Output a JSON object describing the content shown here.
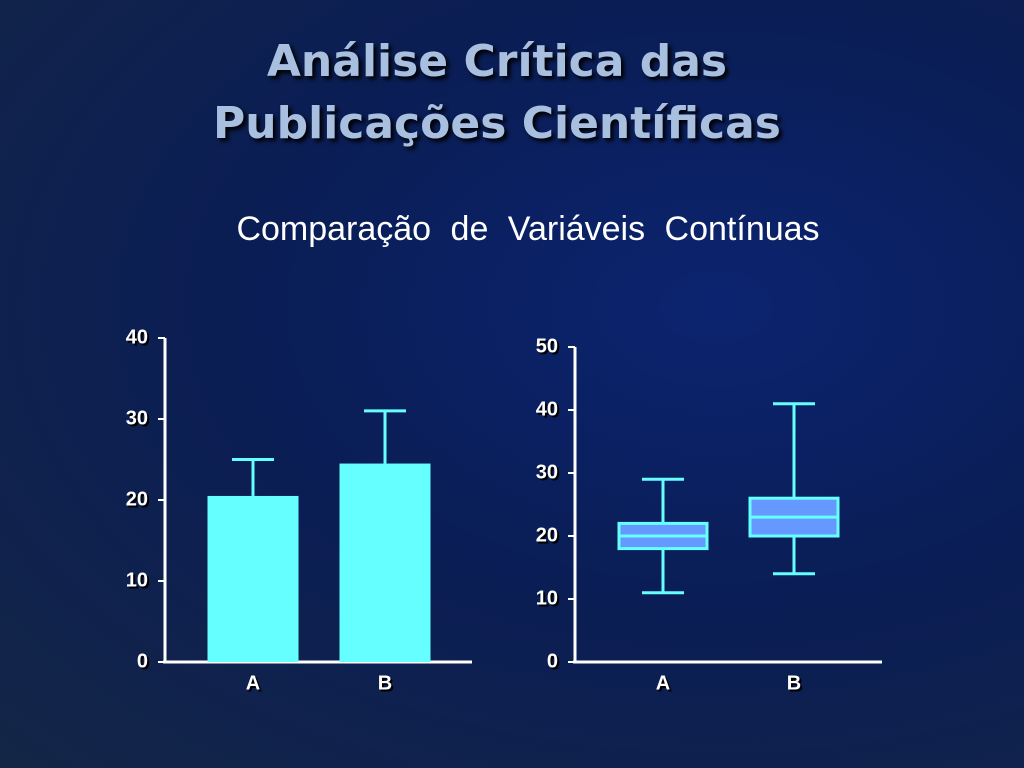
{
  "header": {
    "title": [
      "Análise Crítica das",
      "Publicações Científicas"
    ],
    "subtitle": "Comparação de Variáveis Contínuas"
  },
  "chart_data": [
    {
      "type": "bar",
      "categories": [
        "A",
        "B"
      ],
      "values": [
        20.5,
        24.5
      ],
      "errors": [
        4.5,
        6.5
      ],
      "color": "#66ffff",
      "ylim": [
        0,
        40
      ],
      "yticks": [
        0,
        10,
        20,
        30,
        40
      ]
    },
    {
      "type": "box",
      "categories": [
        "A",
        "B"
      ],
      "min": [
        11,
        14
      ],
      "q1": [
        18,
        20
      ],
      "median": [
        20,
        23
      ],
      "q3": [
        22,
        26
      ],
      "max": [
        29,
        41
      ],
      "color": "#6699ff",
      "line_color": "#66ffff",
      "ylim": [
        0,
        50
      ],
      "yticks": [
        0,
        10,
        20,
        30,
        40,
        50
      ]
    }
  ]
}
